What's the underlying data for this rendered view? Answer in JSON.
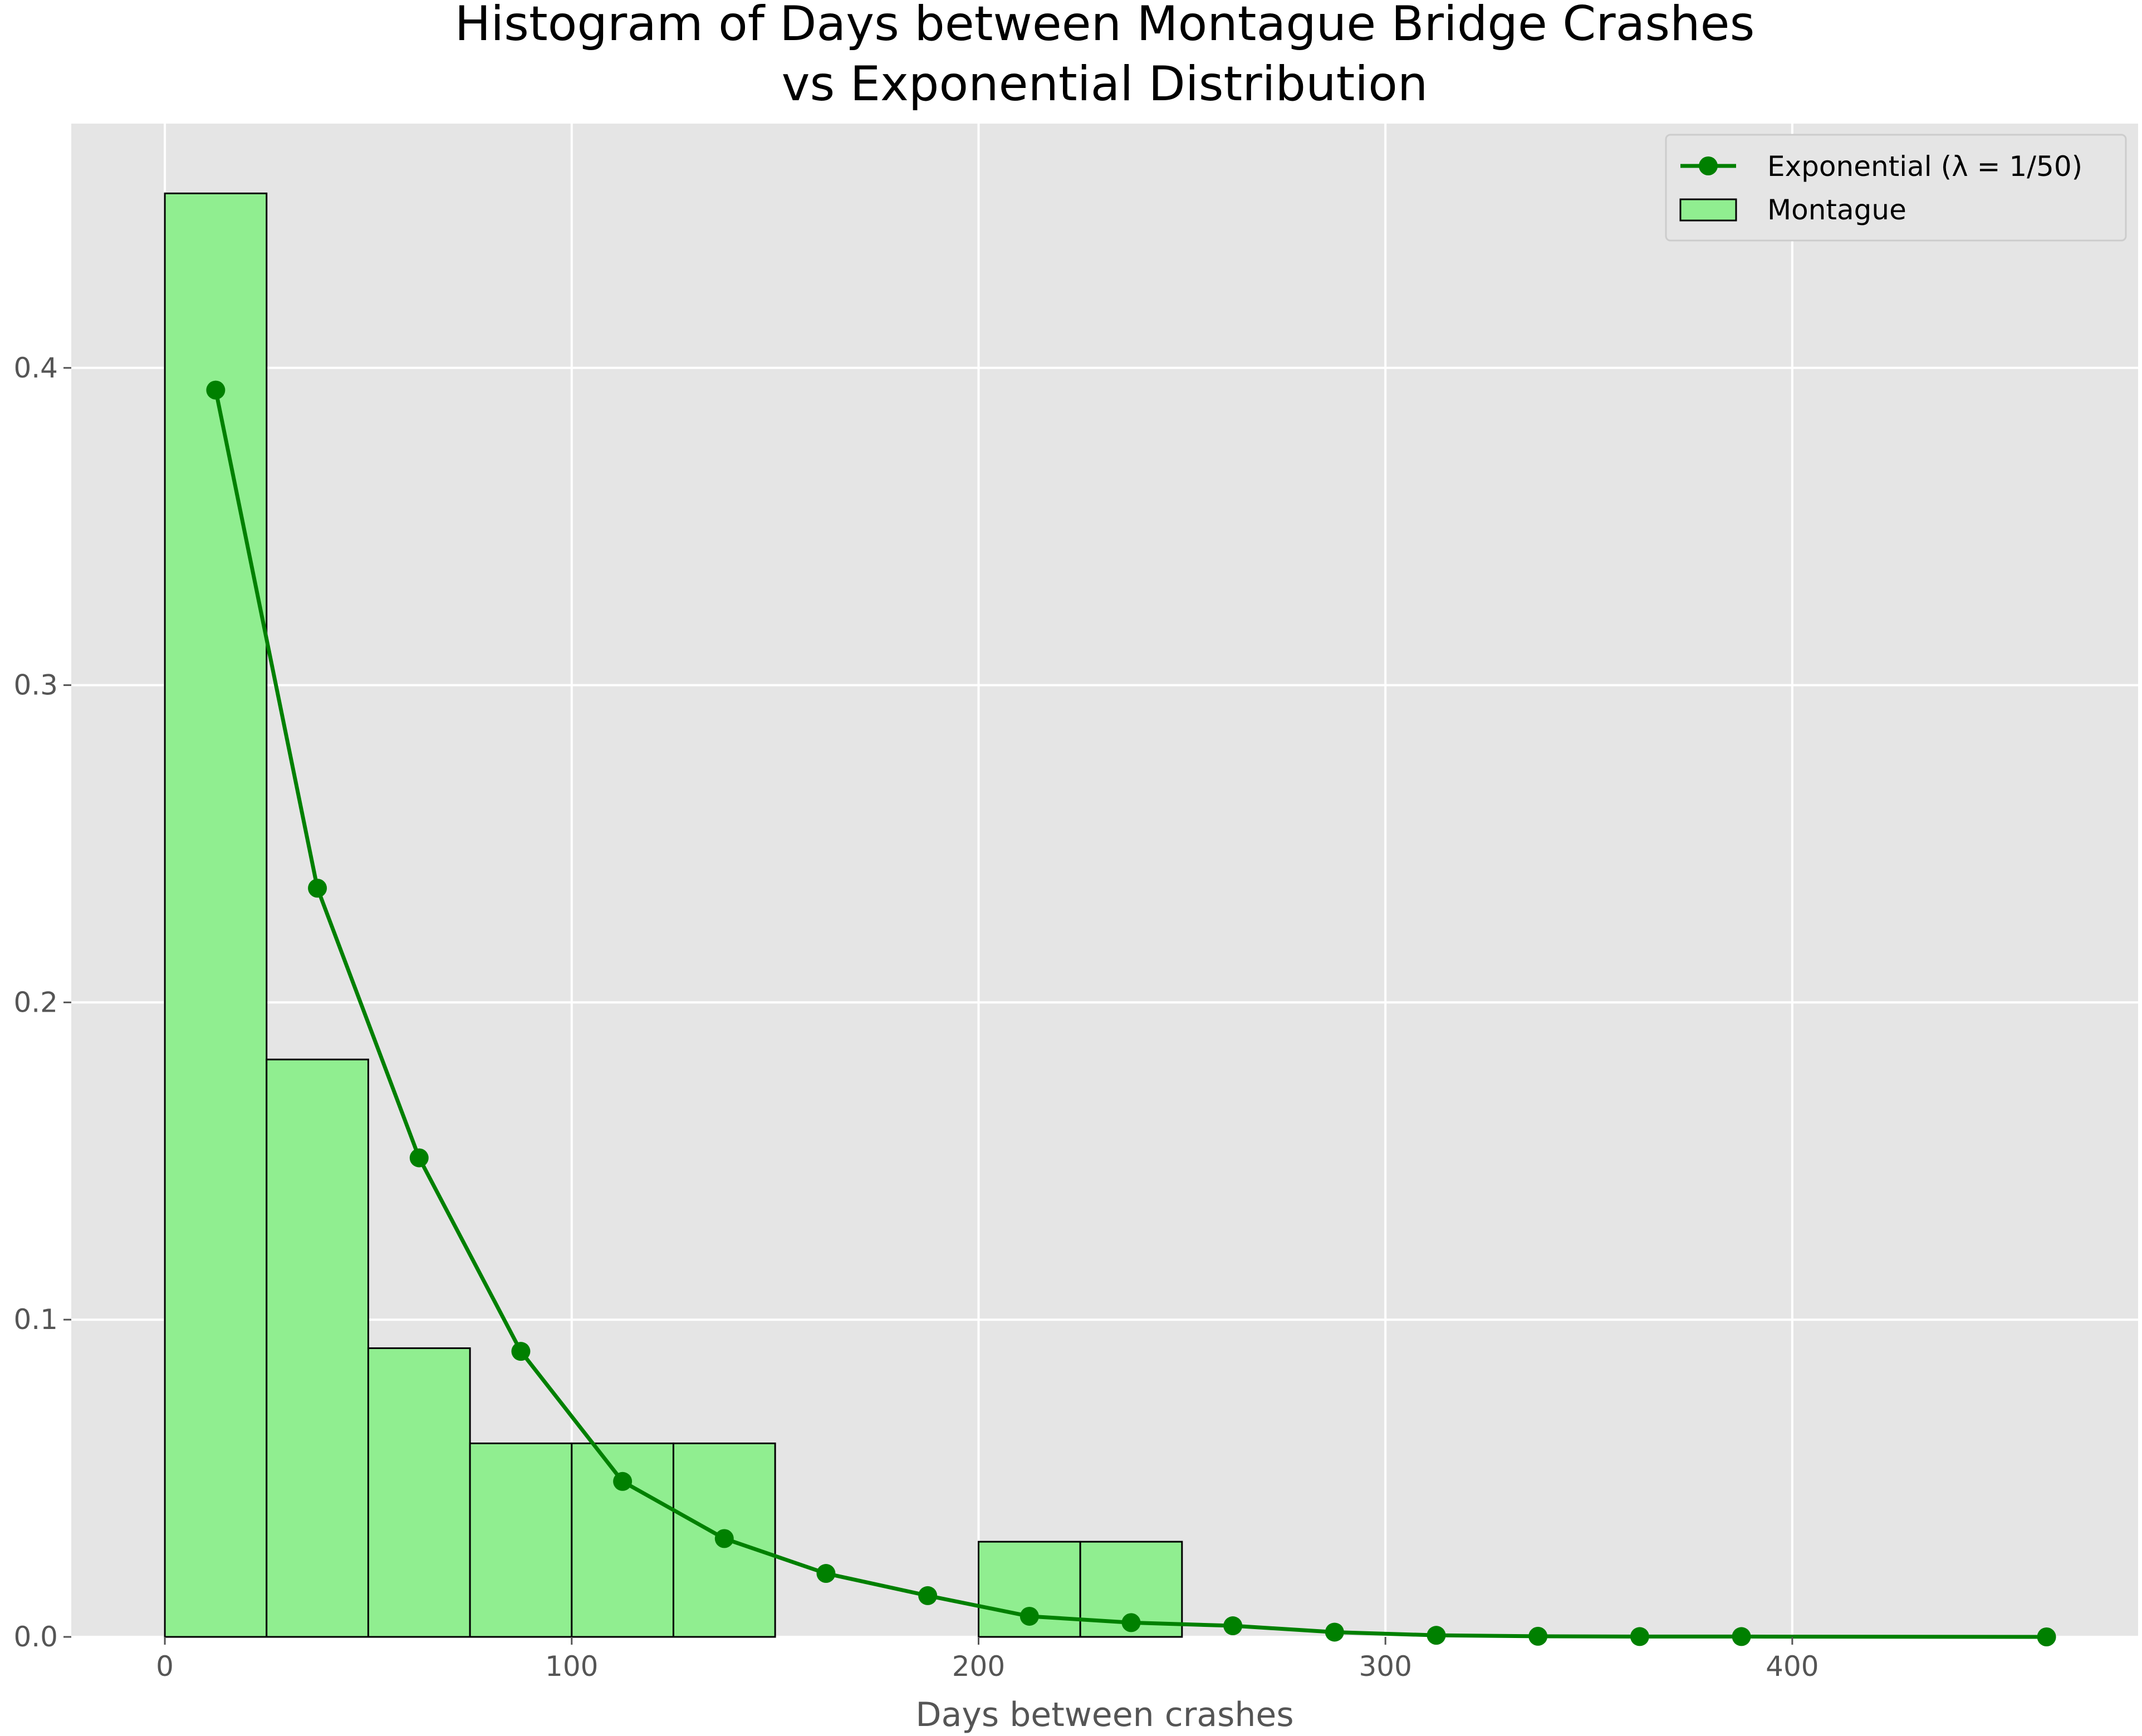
{
  "chart_data": {
    "type": "bar",
    "title": "Histogram of Days between Montague Bridge Crashes\nvs Exponential Distribution",
    "xlabel": "Days between crashes",
    "ylabel": "",
    "xlim": [
      -23,
      485
    ],
    "ylim": [
      0,
      0.477
    ],
    "xticks": [
      0,
      100,
      200,
      300,
      400
    ],
    "yticks": [
      0.0,
      0.1,
      0.2,
      0.3,
      0.4
    ],
    "ytick_labels": [
      "0.0",
      "0.1",
      "0.2",
      "0.3",
      "0.4"
    ],
    "grid": true,
    "legend_position": "top-right",
    "series": [
      {
        "name": "Exponential (λ = 1/50)",
        "kind": "line",
        "color": "#008000",
        "marker": "circle",
        "x": [
          12.5,
          37.5,
          62.5,
          87.5,
          112.5,
          137.5,
          162.5,
          187.5,
          212.5,
          237.5,
          262.5,
          287.5,
          312.5,
          337.5,
          362.5,
          387.5,
          462.5
        ],
        "y": [
          0.393,
          0.236,
          0.151,
          0.09,
          0.049,
          0.031,
          0.02,
          0.013,
          0.0065,
          0.0045,
          0.0035,
          0.0015,
          0.0005,
          0.0002,
          0.0001,
          0.0001,
          0.0
        ]
      },
      {
        "name": "Montague",
        "kind": "histogram",
        "color": "#90ee90",
        "edgecolor": "#000000",
        "bins": [
          {
            "start": 0,
            "end": 25,
            "value": 0.455
          },
          {
            "start": 25,
            "end": 50,
            "value": 0.182
          },
          {
            "start": 50,
            "end": 75,
            "value": 0.091
          },
          {
            "start": 75,
            "end": 100,
            "value": 0.061
          },
          {
            "start": 100,
            "end": 125,
            "value": 0.061
          },
          {
            "start": 125,
            "end": 150,
            "value": 0.061
          },
          {
            "start": 200,
            "end": 225,
            "value": 0.03
          },
          {
            "start": 225,
            "end": 250,
            "value": 0.03
          }
        ]
      }
    ]
  }
}
